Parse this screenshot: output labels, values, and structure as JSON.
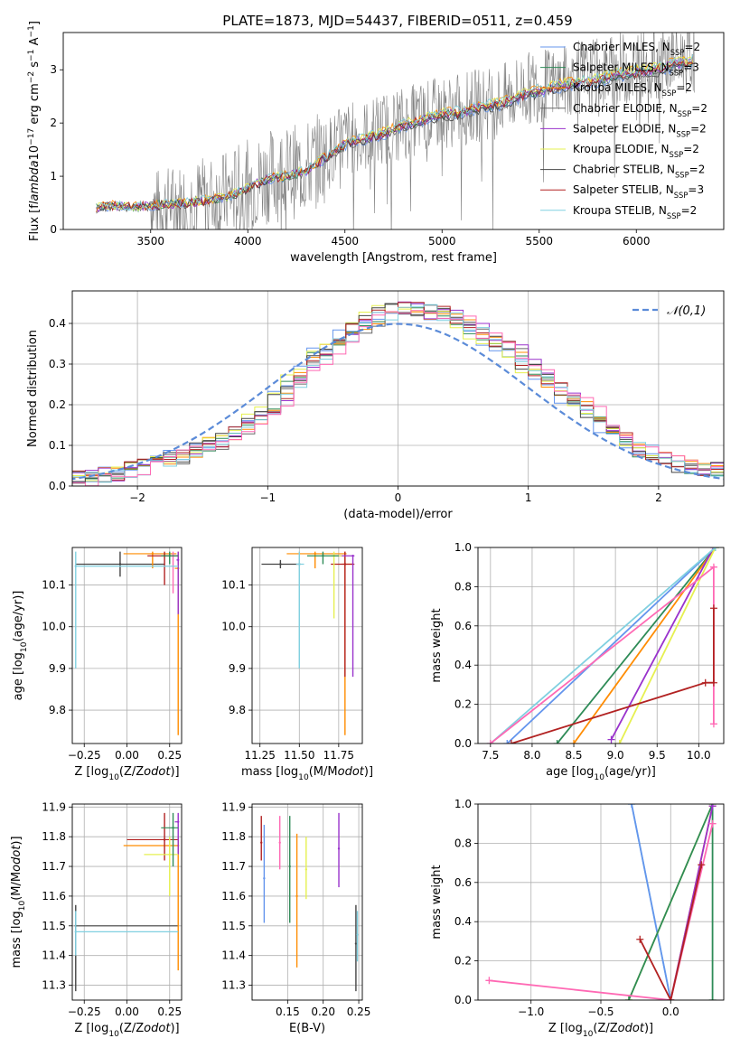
{
  "chart_data": [
    {
      "id": "spectrum",
      "type": "line",
      "title": "PLATE=1873, MJD=54437, FIBERID=0511, z=0.459",
      "xlabel": "wavelength [Angstrom, rest frame]",
      "ylabel": "Flux [f$_\\lambda$10$^{-17}$ erg cm$^{-2}$ s$^{-1}$ A$^{-1}$]",
      "xlim": [
        3050,
        6450
      ],
      "ylim": [
        0,
        3.7
      ],
      "xticks": [
        3500,
        4000,
        4500,
        5000,
        5500,
        6000
      ],
      "yticks": [
        0,
        1,
        2,
        3
      ],
      "grid": false,
      "legend_position": "upper-right",
      "observed_data": {
        "name": "",
        "color": "#808080",
        "x": [
          3500,
          3600,
          3700,
          3800,
          3900,
          4000,
          4100,
          4200,
          4300,
          4400,
          4500,
          4600,
          4700,
          4800,
          4900,
          5000,
          5100,
          5200,
          5300,
          5400,
          5500,
          5600,
          5700,
          5800,
          5900,
          6000,
          6100,
          6200,
          6300
        ],
        "y": [
          0.45,
          0.5,
          0.55,
          0.6,
          0.65,
          0.8,
          1.0,
          1.05,
          1.15,
          1.4,
          1.7,
          1.75,
          1.9,
          2.0,
          2.1,
          2.2,
          2.25,
          2.35,
          2.4,
          2.6,
          2.7,
          2.75,
          2.85,
          2.9,
          3.0,
          3.05,
          3.1,
          3.2,
          3.25
        ]
      },
      "model_curve": {
        "x": [
          3220,
          3300,
          3400,
          3500,
          3600,
          3700,
          3800,
          3900,
          4000,
          4100,
          4200,
          4300,
          4400,
          4500,
          4600,
          4700,
          4800,
          4900,
          5000,
          5100,
          5200,
          5300,
          5400,
          5500,
          5600,
          5700,
          5800,
          5900,
          6000,
          6100,
          6200,
          6300
        ],
        "y": [
          0.4,
          0.45,
          0.42,
          0.45,
          0.48,
          0.5,
          0.55,
          0.62,
          0.78,
          0.95,
          1.0,
          1.1,
          1.35,
          1.6,
          1.7,
          1.8,
          1.95,
          2.05,
          2.15,
          2.2,
          2.3,
          2.35,
          2.5,
          2.6,
          2.7,
          2.75,
          2.8,
          2.9,
          2.95,
          3.0,
          3.1,
          3.15
        ]
      },
      "series": [
        {
          "name": "Chabrier MILES, N$_{SSP}$=2",
          "color": "#6495ed"
        },
        {
          "name": "Salpeter MILES, N$_{SSP}$=3",
          "color": "#2e8b57"
        },
        {
          "name": "Kroupa MILES, N$_{SSP}$=2",
          "color": "#ff8c00"
        },
        {
          "name": "Chabrier ELODIE, N$_{SSP}$=2",
          "color": "#696969"
        },
        {
          "name": "Salpeter ELODIE, N$_{SSP}$=2",
          "color": "#9932cc"
        },
        {
          "name": "Kroupa ELODIE, N$_{SSP}$=2",
          "color": "#e6f050"
        },
        {
          "name": "Chabrier STELIB, N$_{SSP}$=2",
          "color": "#444444"
        },
        {
          "name": "Salpeter STELIB, N$_{SSP}$=3",
          "color": "#b22222"
        },
        {
          "name": "Kroupa STELIB, N$_{SSP}$=2",
          "color": "#80d0e0"
        }
      ]
    },
    {
      "id": "residuals",
      "type": "line",
      "xlabel": "(data-model)/error",
      "ylabel": "Normed distribution",
      "xlim": [
        -2.5,
        2.5
      ],
      "ylim": [
        0,
        0.48
      ],
      "xticks": [
        -2,
        -1,
        0,
        1,
        2
      ],
      "yticks": [
        0.0,
        0.1,
        0.2,
        0.3,
        0.4
      ],
      "grid": true,
      "legend_position": "upper-right",
      "gaussian": {
        "name": "$\\mathcal{N}(0,1)$",
        "color": "#5b8bd8",
        "mean": 0,
        "sigma": 1
      },
      "histogram_envelope": {
        "x": [
          -2.5,
          -2.2,
          -1.9,
          -1.6,
          -1.3,
          -1.0,
          -0.8,
          -0.6,
          -0.4,
          -0.2,
          0.0,
          0.2,
          0.4,
          0.6,
          0.8,
          1.0,
          1.2,
          1.4,
          1.6,
          1.8,
          2.0,
          2.2,
          2.5
        ],
        "y": [
          0.015,
          0.03,
          0.05,
          0.08,
          0.12,
          0.18,
          0.25,
          0.32,
          0.37,
          0.41,
          0.44,
          0.43,
          0.42,
          0.38,
          0.35,
          0.3,
          0.25,
          0.2,
          0.15,
          0.1,
          0.07,
          0.05,
          0.04
        ]
      },
      "histogram_colors": [
        "#6495ed",
        "#2e8b57",
        "#ff8c00",
        "#696969",
        "#9932cc",
        "#e6f050",
        "#444444",
        "#b22222",
        "#80d0e0",
        "#ff69b4"
      ]
    },
    {
      "id": "age-vs-Z",
      "type": "scatter",
      "xlabel": "Z [log$_{10}$(Z/Z$_\\odot$)]",
      "ylabel": "age  [log$_{10}$(age/yr)]",
      "xlim": [
        -0.32,
        0.32
      ],
      "ylim": [
        9.72,
        10.19
      ],
      "xticks": [
        -0.25,
        0.0,
        0.25
      ],
      "xticklabels": [
        "−0.25",
        "0.00",
        "0.25"
      ],
      "yticks": [
        9.8,
        9.9,
        10.0,
        10.1
      ],
      "grid": true,
      "points": [
        {
          "x": -0.04,
          "y": 10.15,
          "x0": -0.3,
          "x1": 0.22,
          "y0": 10.12,
          "y1": 10.18,
          "color": "#444444"
        },
        {
          "x": 0.15,
          "y": 10.175,
          "x0": -0.02,
          "x1": 0.29,
          "y0": 10.14,
          "y1": 10.18,
          "color": "#ff8c00"
        },
        {
          "x": 0.3,
          "y": 10.14,
          "x0": 0.28,
          "x1": 0.3,
          "y0": 9.74,
          "y1": 10.18,
          "color": "#ff8c00"
        },
        {
          "x": 0.22,
          "y": 10.17,
          "x0": 0.12,
          "x1": 0.3,
          "y0": 10.1,
          "y1": 10.18,
          "color": "#b22222"
        },
        {
          "x": 0.27,
          "y": 10.17,
          "x0": 0.24,
          "x1": 0.3,
          "y0": 10.08,
          "y1": 10.18,
          "color": "#ff69b4"
        },
        {
          "x": 0.3,
          "y": 10.16,
          "x0": 0.29,
          "x1": 0.3,
          "y0": 10.03,
          "y1": 10.18,
          "color": "#9932cc"
        },
        {
          "x": 0.25,
          "y": 10.17,
          "x0": 0.2,
          "x1": 0.3,
          "y0": 10.15,
          "y1": 10.18,
          "color": "#2e8b57"
        },
        {
          "x": -0.3,
          "y": 10.145,
          "x0": -0.3,
          "x1": 0.3,
          "y0": 9.9,
          "y1": 10.18,
          "color": "#80d0e0"
        }
      ]
    },
    {
      "id": "age-vs-mass",
      "type": "scatter",
      "xlabel": "mass [log$_{10}$(M/M$_\\odot$)]",
      "xlim": [
        11.2,
        11.9
      ],
      "ylim": [
        9.72,
        10.19
      ],
      "xticks": [
        11.25,
        11.5,
        11.75
      ],
      "xticklabels": [
        "11.25",
        "11.50",
        "11.75"
      ],
      "yticks": [
        9.8,
        9.9,
        10.0,
        10.1
      ],
      "grid": true,
      "points": [
        {
          "x": 11.38,
          "y": 10.15,
          "x0": 11.26,
          "x1": 11.51,
          "y0": 10.14,
          "y1": 10.16,
          "color": "#444444"
        },
        {
          "x": 11.6,
          "y": 10.175,
          "x0": 11.42,
          "x1": 11.8,
          "y0": 10.14,
          "y1": 10.18,
          "color": "#ff8c00"
        },
        {
          "x": 11.79,
          "y": 10.15,
          "x0": 11.77,
          "x1": 11.84,
          "y0": 9.74,
          "y1": 10.18,
          "color": "#ff8c00"
        },
        {
          "x": 11.79,
          "y": 10.15,
          "x0": 11.7,
          "x1": 11.85,
          "y0": 9.88,
          "y1": 10.18,
          "color": "#b22222"
        },
        {
          "x": 11.84,
          "y": 10.17,
          "x0": 11.74,
          "x1": 11.85,
          "y0": 9.88,
          "y1": 10.17,
          "color": "#9932cc"
        },
        {
          "x": 11.72,
          "y": 10.17,
          "x0": 11.7,
          "x1": 11.77,
          "y0": 10.02,
          "y1": 10.18,
          "color": "#e6f050"
        },
        {
          "x": 11.65,
          "y": 10.17,
          "x0": 11.55,
          "x1": 11.75,
          "y0": 10.15,
          "y1": 10.18,
          "color": "#2e8b57"
        },
        {
          "x": 11.5,
          "y": 10.15,
          "x0": 11.48,
          "x1": 11.53,
          "y0": 9.9,
          "y1": 10.18,
          "color": "#80d0e0"
        }
      ]
    },
    {
      "id": "mass-weight-vs-age",
      "type": "line",
      "xlabel": "age  [log$_{10}$(age/yr)]",
      "ylabel": "mass weight",
      "xlim": [
        7.35,
        10.3
      ],
      "ylim": [
        0,
        1.0
      ],
      "xticks": [
        7.5,
        8.0,
        8.5,
        9.0,
        9.5,
        10.0
      ],
      "yticks": [
        0.0,
        0.2,
        0.4,
        0.6,
        0.8,
        1.0
      ],
      "grid": true,
      "series": [
        {
          "color": "#6495ed",
          "x": [
            7.7,
            10.2
          ],
          "y": [
            0.0,
            1.0
          ]
        },
        {
          "color": "#2e8b57",
          "x": [
            8.3,
            10.2
          ],
          "y": [
            0.0,
            1.0
          ]
        },
        {
          "color": "#ff8c00",
          "x": [
            8.5,
            10.2
          ],
          "y": [
            0.0,
            1.0
          ]
        },
        {
          "color": "#9932cc",
          "x": [
            8.95,
            10.18
          ],
          "y": [
            0.02,
            1.0
          ]
        },
        {
          "color": "#e6f050",
          "x": [
            9.05,
            10.2
          ],
          "y": [
            0.0,
            1.0
          ]
        },
        {
          "color": "#80d0e0",
          "x": [
            7.5,
            10.2
          ],
          "y": [
            0.0,
            1.0
          ]
        },
        {
          "color": "#ff69b4",
          "x": [
            7.5,
            10.18,
            10.18
          ],
          "y": [
            0.0,
            0.9,
            0.1
          ]
        },
        {
          "color": "#b22222",
          "x": [
            7.75,
            10.08,
            10.18,
            10.18
          ],
          "y": [
            0.0,
            0.31,
            0.31,
            0.69
          ]
        }
      ]
    },
    {
      "id": "mass-vs-Z",
      "type": "scatter",
      "xlabel": "Z [log$_{10}$(Z/Z$_\\odot$)]",
      "ylabel": "mass [log$_{10}$(M/M$_\\odot$)]",
      "xlim": [
        -0.32,
        0.32
      ],
      "ylim": [
        11.25,
        11.91
      ],
      "xticks": [
        -0.25,
        0.0,
        0.25
      ],
      "xticklabels": [
        "−0.25",
        "0.00",
        "0.25"
      ],
      "yticks": [
        11.3,
        11.4,
        11.5,
        11.6,
        11.7,
        11.8,
        11.9
      ],
      "grid": true,
      "points": [
        {
          "x": -0.3,
          "y": 11.5,
          "x0": -0.3,
          "x1": 0.3,
          "y0": 11.28,
          "y1": 11.57,
          "color": "#444444"
        },
        {
          "x": 0.3,
          "y": 11.77,
          "x0": -0.02,
          "x1": 0.3,
          "y0": 11.35,
          "y1": 11.8,
          "color": "#ff8c00"
        },
        {
          "x": 0.22,
          "y": 11.79,
          "x0": 0.0,
          "x1": 0.3,
          "y0": 11.72,
          "y1": 11.88,
          "color": "#b22222"
        },
        {
          "x": 0.3,
          "y": 11.85,
          "x0": 0.28,
          "x1": 0.3,
          "y0": 11.74,
          "y1": 11.88,
          "color": "#9932cc"
        },
        {
          "x": 0.25,
          "y": 11.74,
          "x0": 0.1,
          "x1": 0.3,
          "y0": 11.6,
          "y1": 11.8,
          "color": "#e6f050"
        },
        {
          "x": 0.27,
          "y": 11.83,
          "x0": 0.2,
          "x1": 0.3,
          "y0": 11.7,
          "y1": 11.88,
          "color": "#2e8b57"
        },
        {
          "x": -0.3,
          "y": 11.48,
          "x0": -0.3,
          "x1": 0.3,
          "y0": 11.4,
          "y1": 11.55,
          "color": "#80d0e0"
        }
      ]
    },
    {
      "id": "mass-vs-ebv",
      "type": "scatter",
      "xlabel": "E(B-V)",
      "xlim": [
        0.1,
        0.255
      ],
      "ylim": [
        11.25,
        11.91
      ],
      "xticks": [
        0.15,
        0.2,
        0.25
      ],
      "xticklabels": [
        "0.15",
        "0.20",
        "0.25"
      ],
      "yticks": [
        11.3,
        11.4,
        11.5,
        11.6,
        11.7,
        11.8,
        11.9
      ],
      "grid": true,
      "points": [
        {
          "x": 0.113,
          "y": 11.78,
          "y0": 11.72,
          "y1": 11.87,
          "color": "#b22222"
        },
        {
          "x": 0.117,
          "y": 11.66,
          "y0": 11.51,
          "y1": 11.84,
          "color": "#6495ed"
        },
        {
          "x": 0.139,
          "y": 11.78,
          "y0": 11.69,
          "y1": 11.87,
          "color": "#ff69b4"
        },
        {
          "x": 0.153,
          "y": 11.7,
          "y0": 11.51,
          "y1": 11.87,
          "color": "#2e8b57"
        },
        {
          "x": 0.163,
          "y": 11.6,
          "y0": 11.36,
          "y1": 11.81,
          "color": "#ff8c00"
        },
        {
          "x": 0.176,
          "y": 11.69,
          "y0": 11.59,
          "y1": 11.8,
          "color": "#e6f050"
        },
        {
          "x": 0.222,
          "y": 11.76,
          "y0": 11.63,
          "y1": 11.88,
          "color": "#9932cc"
        },
        {
          "x": 0.246,
          "y": 11.44,
          "y0": 11.28,
          "y1": 11.57,
          "color": "#444444"
        },
        {
          "x": 0.248,
          "y": 11.47,
          "y0": 11.38,
          "y1": 11.55,
          "color": "#80d0e0"
        }
      ]
    },
    {
      "id": "mass-weight-vs-Z",
      "type": "line",
      "xlabel": "Z [log$_{10}$(Z/Z$_\\odot$)]",
      "ylabel": "mass weight",
      "xlim": [
        -1.38,
        0.38
      ],
      "ylim": [
        0,
        1.0
      ],
      "xticks": [
        -1.0,
        -0.5,
        0.0
      ],
      "xticklabels": [
        "−1.0",
        "−0.5",
        "0.0"
      ],
      "yticks": [
        0.0,
        0.2,
        0.4,
        0.6,
        0.8,
        1.0
      ],
      "grid": true,
      "series": [
        {
          "color": "#80d0e0",
          "x": [
            -0.28,
            0.0
          ],
          "y": [
            1.0,
            0.0
          ]
        },
        {
          "color": "#6495ed",
          "x": [
            -0.28,
            0.0
          ],
          "y": [
            1.0,
            0.0
          ]
        },
        {
          "color": "#ff8c00",
          "x": [
            0.0,
            0.3
          ],
          "y": [
            0.0,
            0.99
          ]
        },
        {
          "color": "#e6f050",
          "x": [
            -0.3,
            0.3
          ],
          "y": [
            0.0,
            1.0
          ]
        },
        {
          "color": "#2e8b57",
          "x": [
            -0.3,
            0.3,
            0.3
          ],
          "y": [
            0.0,
            1.0,
            0.0
          ]
        },
        {
          "color": "#9932cc",
          "x": [
            0.0,
            0.3
          ],
          "y": [
            0.0,
            0.99
          ]
        },
        {
          "color": "#ff69b4",
          "x": [
            -1.3,
            0.0,
            0.3
          ],
          "y": [
            0.1,
            0.0,
            0.9
          ]
        },
        {
          "color": "#b22222",
          "x": [
            -0.22,
            0.0,
            0.22
          ],
          "y": [
            0.31,
            0.0,
            0.69
          ]
        }
      ]
    }
  ]
}
